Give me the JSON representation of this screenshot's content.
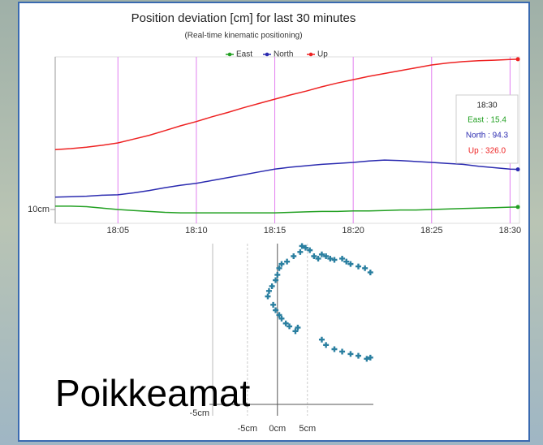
{
  "caption": "Poikkeamat",
  "chart_data": [
    {
      "type": "line",
      "title": "Position deviation [cm] for last 30 minutes",
      "subtitle": "(Real-time kinematic positioning)",
      "x": [
        1,
        2,
        3,
        4,
        5,
        6,
        7,
        8,
        9,
        10,
        11,
        12,
        13,
        14,
        15,
        16,
        17,
        18,
        19,
        20,
        21,
        22,
        23,
        24,
        25,
        26,
        27,
        28,
        29,
        30,
        30.5
      ],
      "series": [
        {
          "name": "East",
          "color": "#22a022",
          "values": [
            17,
            17,
            16,
            13,
            10,
            8,
            6,
            4,
            3,
            3,
            3,
            3,
            3,
            3,
            3,
            4,
            5,
            6,
            6,
            7,
            7,
            8,
            9,
            9,
            10,
            11,
            12,
            13,
            14,
            15,
            15.4
          ]
        },
        {
          "name": "North",
          "color": "#2b2bb0",
          "values": [
            36,
            37,
            38,
            40,
            41,
            45,
            50,
            56,
            61,
            65,
            71,
            77,
            83,
            89,
            95,
            99,
            102,
            105,
            107,
            109,
            112,
            114,
            113,
            111,
            109,
            107,
            105,
            101,
            98,
            95,
            94.3
          ]
        },
        {
          "name": "Up",
          "color": "#ee2222",
          "values": [
            136,
            138,
            141,
            145,
            150,
            158,
            166,
            176,
            186,
            195,
            205,
            214,
            224,
            233,
            242,
            251,
            259,
            268,
            276,
            283,
            290,
            296,
            302,
            308,
            314,
            318,
            321,
            323,
            324,
            325.5,
            326.0
          ]
        }
      ],
      "xlim": [
        1,
        30.6
      ],
      "xticks": [
        {
          "value": 5,
          "label": "18:05"
        },
        {
          "value": 10,
          "label": "18:10"
        },
        {
          "value": 15,
          "label": "18:15"
        },
        {
          "value": 20,
          "label": "18:20"
        },
        {
          "value": 25,
          "label": "18:25"
        },
        {
          "value": 30,
          "label": "18:30"
        }
      ],
      "ylim": [
        -19,
        331
      ],
      "yticks": [
        {
          "value": 10,
          "label": "10cm"
        }
      ],
      "grid": true,
      "tooltip": {
        "title": "18:30",
        "lines": [
          "East : 15.4",
          "North : 94.3",
          "Up : 326.0"
        ]
      }
    },
    {
      "type": "scatter",
      "color": "#2a7fa0",
      "x": [
        4.1,
        4.7,
        3.8,
        5.4,
        6.1,
        6.8,
        7.4,
        8.1,
        8.8,
        9.5,
        10.8,
        11.5,
        12.2,
        13.5,
        14.6,
        15.5,
        2.7,
        1.6,
        0.7,
        0.3,
        0,
        -0.3,
        -0.9,
        -1.4,
        -1.6,
        -0.7,
        -0.3,
        0.3,
        0.7,
        1.4,
        2.0,
        3.0,
        3.4,
        7.4,
        8.1,
        9.5,
        10.8,
        12.2,
        13.5,
        14.9,
        15.5
      ],
      "values": [
        21.4,
        21.1,
        20.4,
        20.7,
        19.7,
        19.3,
        20.0,
        19.7,
        19.3,
        19.1,
        19.3,
        18.8,
        18.4,
        18.0,
        17.7,
        17.0,
        19.7,
        18.8,
        18.4,
        17.7,
        16.6,
        15.7,
        14.7,
        13.9,
        13.0,
        11.6,
        10.7,
        9.9,
        9.3,
        8.5,
        8.0,
        7.2,
        7.8,
        5.8,
        4.9,
        4.2,
        3.8,
        3.4,
        3.1,
        2.6,
        2.8
      ],
      "xlim": [
        -10.8,
        16
      ],
      "xticks": [
        {
          "value": -5,
          "label": "-5cm"
        },
        {
          "value": 0,
          "label": "0cm"
        },
        {
          "value": 5,
          "label": "5cm"
        }
      ],
      "ylim": [
        -6.9,
        21.8
      ],
      "yticks": [
        {
          "value": -5,
          "label": "-5cm"
        }
      ]
    }
  ]
}
